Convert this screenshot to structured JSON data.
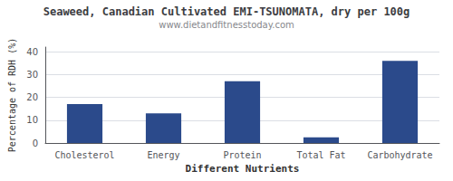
{
  "chart_data": {
    "type": "bar",
    "title": "Seaweed, Canadian Cultivated EMI-TSUNOMATA, dry per 100g",
    "subtitle": "www.dietandfitnesstoday.com",
    "xlabel": "Different Nutrients",
    "ylabel": "Percentage of RDH (%)",
    "categories": [
      "Cholesterol",
      "Energy",
      "Protein",
      "Total Fat",
      "Carbohydrate"
    ],
    "values": [
      17,
      13,
      27,
      2.5,
      36
    ],
    "color": "#2b4a8b",
    "ylim": [
      0,
      42
    ],
    "yticks": [
      0,
      10,
      20,
      30,
      40
    ],
    "grid": true
  }
}
